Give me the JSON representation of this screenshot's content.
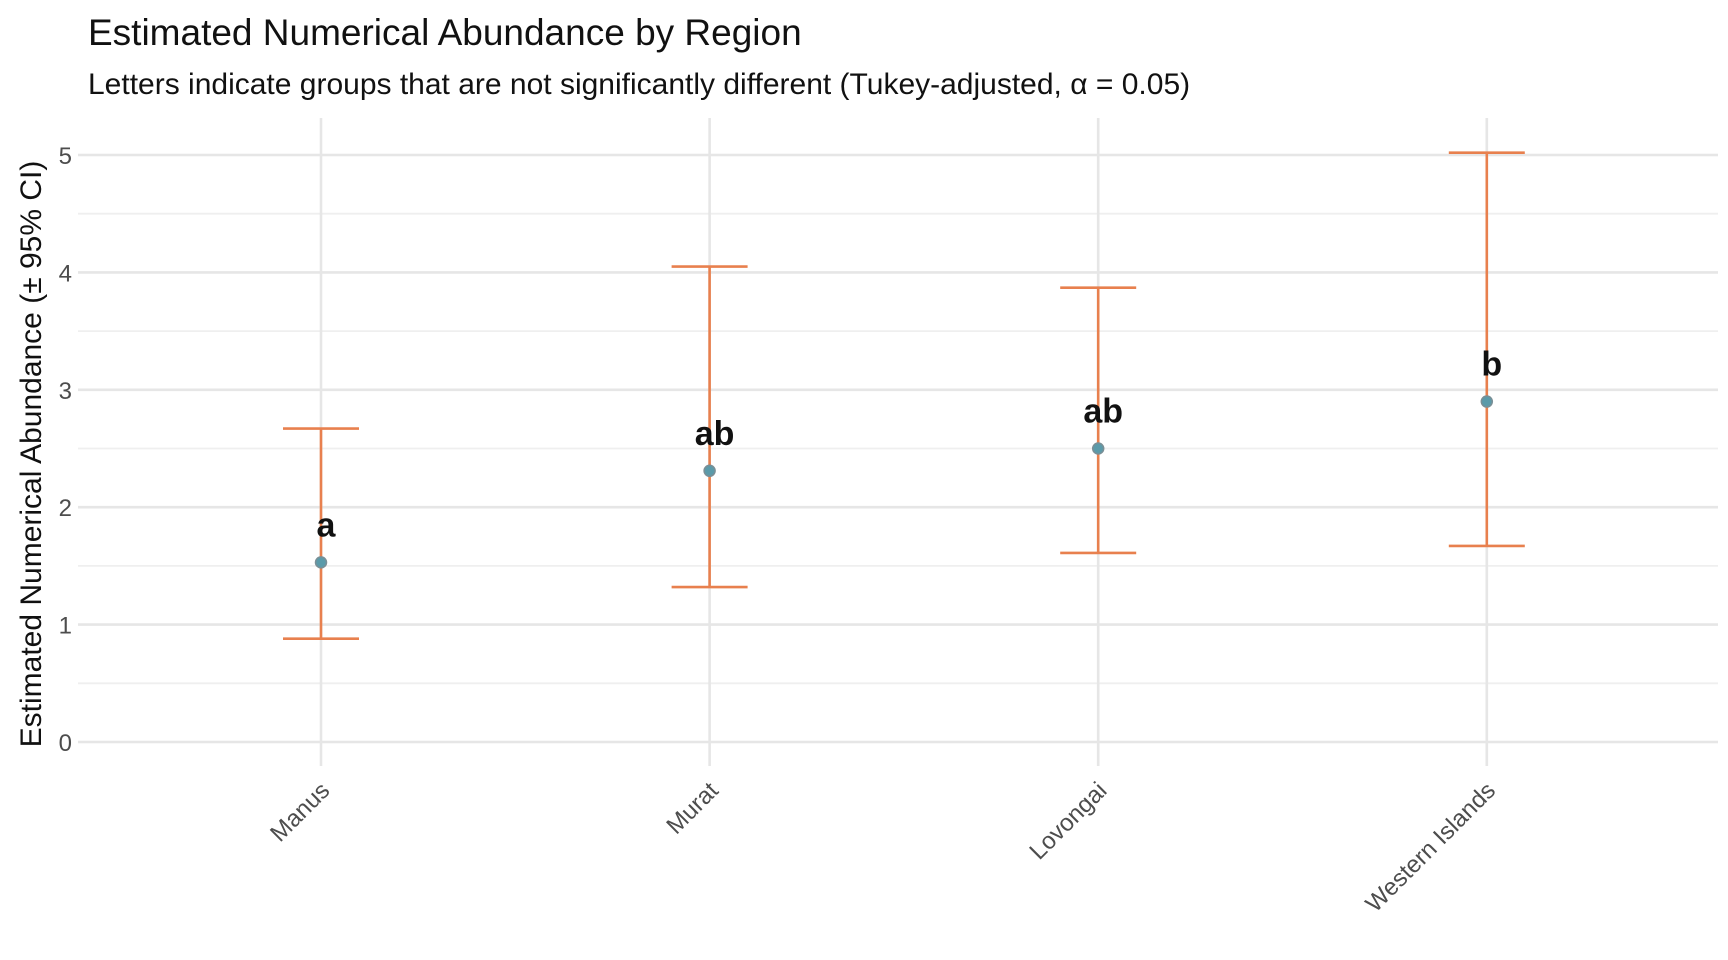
{
  "chart_data": {
    "type": "errorbar",
    "title": "Estimated Numerical Abundance by Region",
    "subtitle": "Letters indicate groups that are not significantly different (Tukey-adjusted, α = 0.05)",
    "xlabel": "",
    "ylabel": "Estimated Numerical Abundance (± 95% CI)",
    "ylim": [
      -0.2,
      5.3
    ],
    "yticks": [
      0,
      1,
      2,
      3,
      4,
      5
    ],
    "grid": true,
    "categories": [
      "Manus",
      "Murat",
      "Lovongai",
      "Western Islands"
    ],
    "estimates": [
      1.53,
      2.31,
      2.5,
      2.9
    ],
    "ci_lower": [
      0.88,
      1.32,
      1.61,
      1.67
    ],
    "ci_upper": [
      2.67,
      4.05,
      3.87,
      5.02
    ],
    "group_letters": [
      "a",
      "ab",
      "ab",
      "b"
    ],
    "colors": {
      "errorbar": "#E8804E",
      "point": "#5B9AA9",
      "point_edge": "#7A8F96",
      "grid": "#E6E6E6"
    }
  }
}
